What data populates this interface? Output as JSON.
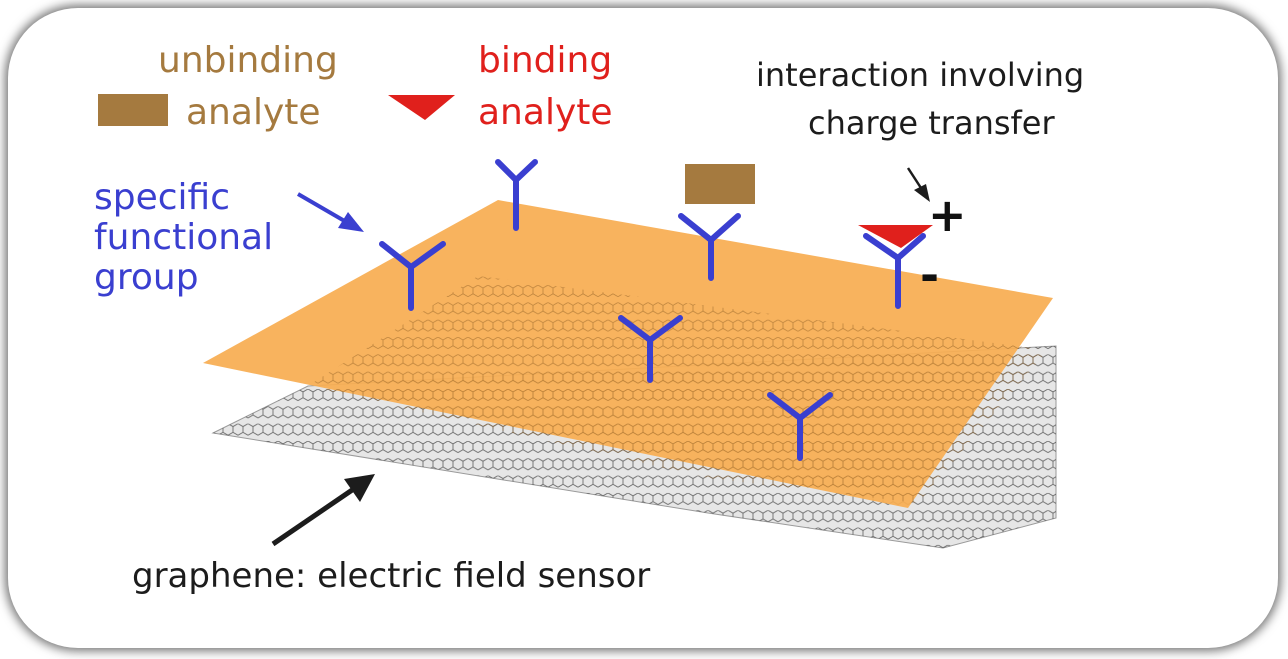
{
  "labels": {
    "unbinding_line1": "unbinding",
    "unbinding_line2": "analyte",
    "binding_line1": "binding",
    "binding_line2": "analyte",
    "interaction_line1": "interaction involving",
    "interaction_line2": "charge transfer",
    "functional_line1": "specific",
    "functional_line2": "functional",
    "functional_line3": "group",
    "graphene": "graphene: electric field sensor",
    "plus": "+",
    "minus": "-"
  },
  "colors": {
    "orange_layer": "#f7ad52",
    "graphene_layer": "#d8d8d8",
    "receptor": "#3a3fd0",
    "unbinding_analyte": "#a57a3f",
    "binding_analyte": "#e0201c",
    "arrow": "#1c1c1c"
  },
  "icons": {
    "receptor": "y-shaped-receptor-icon",
    "unbinding_analyte": "brown-rectangle-icon",
    "binding_analyte": "red-triangle-icon"
  }
}
